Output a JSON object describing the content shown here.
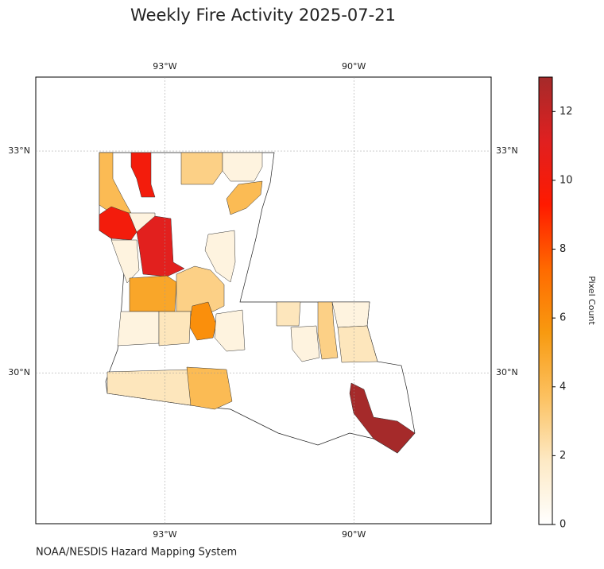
{
  "map": {
    "title": "Weekly Fire Activity 2025-07-21",
    "source": "NOAA/NESDIS Hazard Mapping System",
    "colorbar_label": "Pixel Count",
    "vlim": [
      0,
      13
    ],
    "cticks": [
      0,
      2,
      4,
      6,
      8,
      10,
      12
    ],
    "colormap": [
      "#ffffff",
      "#fde9c4",
      "#fcc160",
      "#f89a10",
      "#ff6a00",
      "#ff1a00",
      "#e02020",
      "#a52a2a"
    ],
    "lon_lines": [
      {
        "value": -93,
        "label": "93°W"
      },
      {
        "value": -90,
        "label": "90°W"
      }
    ],
    "lat_lines": [
      {
        "value": 33,
        "label": "33°N"
      },
      {
        "value": 30,
        "label": "30°N"
      }
    ],
    "lonlim": [
      -95.05,
      -87.82
    ],
    "latlim": [
      27.96,
      34.0
    ],
    "regions": {
      "values": [
        4,
        10,
        3,
        1,
        4,
        10,
        1,
        11,
        1,
        5,
        3,
        1,
        6,
        1,
        2,
        1,
        2,
        3,
        1,
        2,
        2,
        4,
        13,
        1
      ]
    }
  }
}
